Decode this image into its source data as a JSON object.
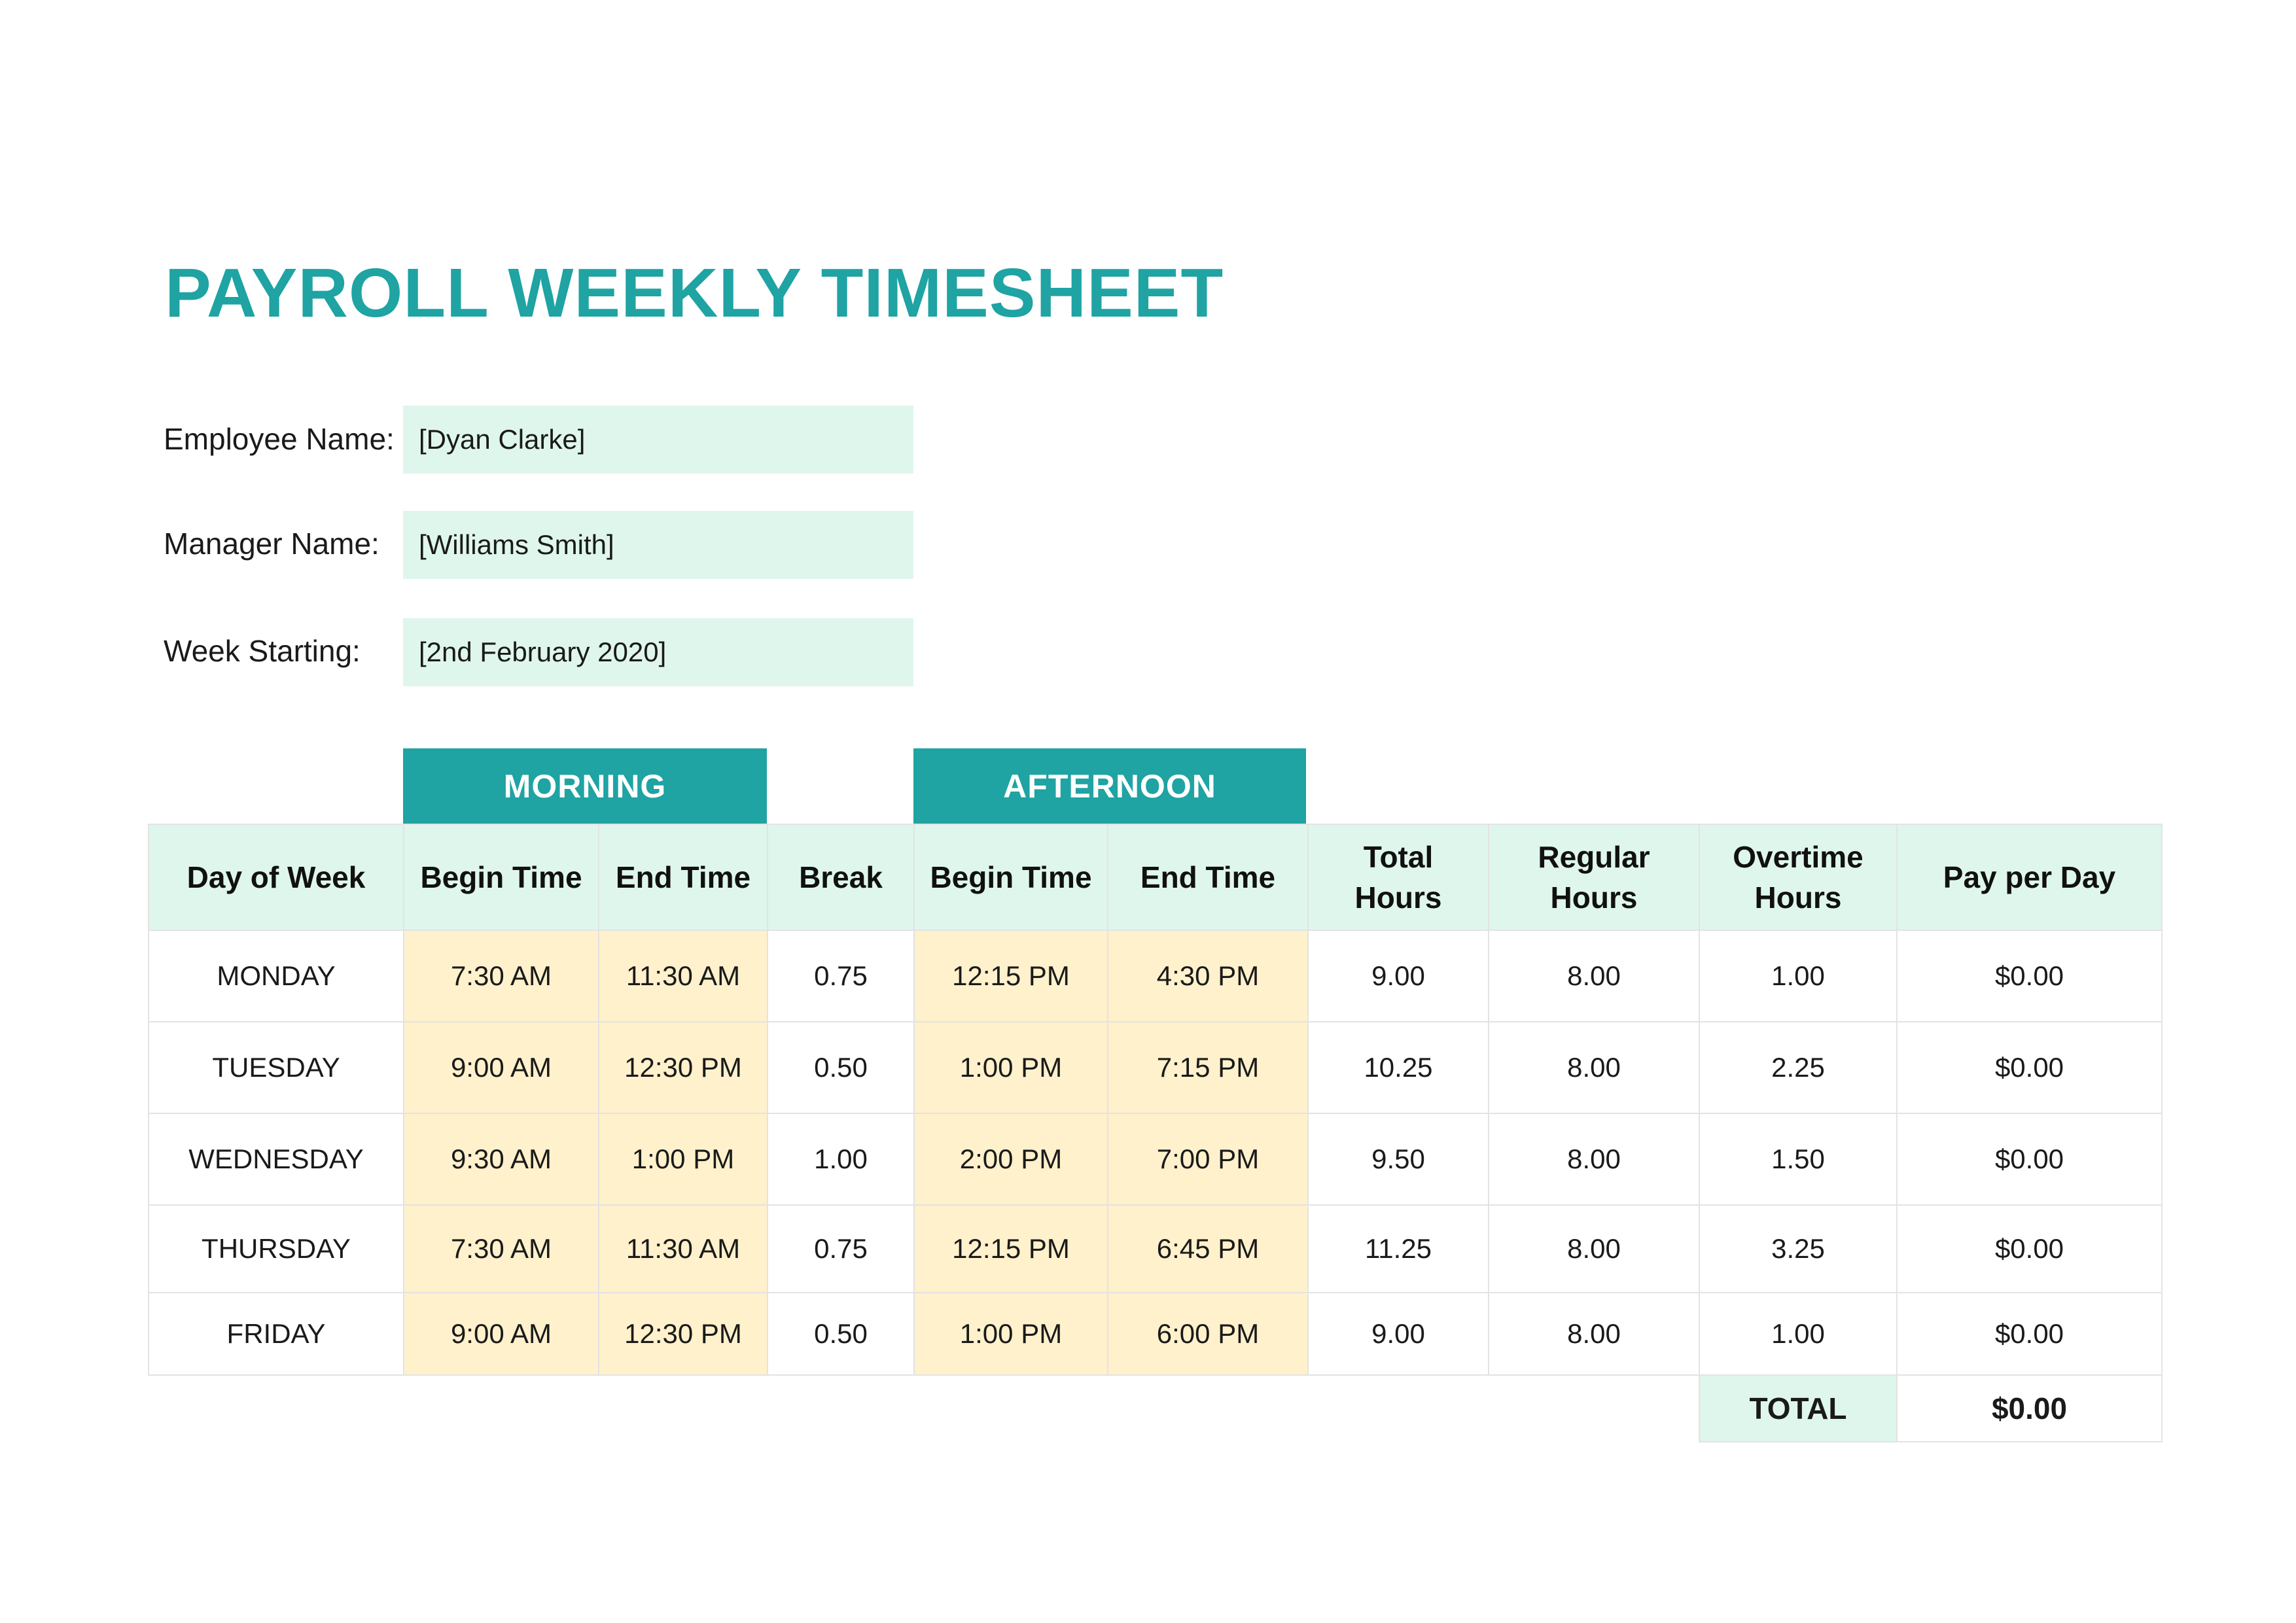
{
  "title": "PAYROLL WEEKLY TIMESHEET",
  "info": {
    "employee_label": "Employee Name:",
    "employee_value": "[Dyan Clarke]",
    "manager_label": "Manager Name:",
    "manager_value": "[Williams Smith]",
    "week_label": "Week Starting:",
    "week_value": "[2nd February 2020]"
  },
  "sections": {
    "morning": "MORNING",
    "afternoon": "AFTERNOON"
  },
  "columns": {
    "day": "Day of Week",
    "m_begin": "Begin Time",
    "m_end": "End Time",
    "break": "Break",
    "a_begin": "Begin Time",
    "a_end": "End Time",
    "total_hours": "Total Hours",
    "regular_hours": "Regular Hours",
    "overtime_hours": "Overtime Hours",
    "pay": "Pay per Day"
  },
  "rows": [
    {
      "day": "MONDAY",
      "m_begin": "7:30 AM",
      "m_end": "11:30 AM",
      "break": "0.75",
      "a_begin": "12:15 PM",
      "a_end": "4:30 PM",
      "total": "9.00",
      "regular": "8.00",
      "overtime": "1.00",
      "pay": "$0.00"
    },
    {
      "day": "TUESDAY",
      "m_begin": "9:00 AM",
      "m_end": "12:30 PM",
      "break": "0.50",
      "a_begin": "1:00 PM",
      "a_end": "7:15 PM",
      "total": "10.25",
      "regular": "8.00",
      "overtime": "2.25",
      "pay": "$0.00"
    },
    {
      "day": "WEDNESDAY",
      "m_begin": "9:30 AM",
      "m_end": "1:00 PM",
      "break": "1.00",
      "a_begin": "2:00 PM",
      "a_end": "7:00 PM",
      "total": "9.50",
      "regular": "8.00",
      "overtime": "1.50",
      "pay": "$0.00"
    },
    {
      "day": "THURSDAY",
      "m_begin": "7:30 AM",
      "m_end": "11:30 AM",
      "break": "0.75",
      "a_begin": "12:15 PM",
      "a_end": "6:45 PM",
      "total": "11.25",
      "regular": "8.00",
      "overtime": "3.25",
      "pay": "$0.00"
    },
    {
      "day": "FRIDAY",
      "m_begin": "9:00 AM",
      "m_end": "12:30 PM",
      "break": "0.50",
      "a_begin": "1:00 PM",
      "a_end": "6:00 PM",
      "total": "9.00",
      "regular": "8.00",
      "overtime": "1.00",
      "pay": "$0.00"
    }
  ],
  "total": {
    "label": "TOTAL",
    "value": "$0.00"
  },
  "colors": {
    "accent": "#1fa3a3",
    "header_fill": "#dff6ec",
    "time_fill": "#fff1cc",
    "grid": "#e3e3e3"
  }
}
